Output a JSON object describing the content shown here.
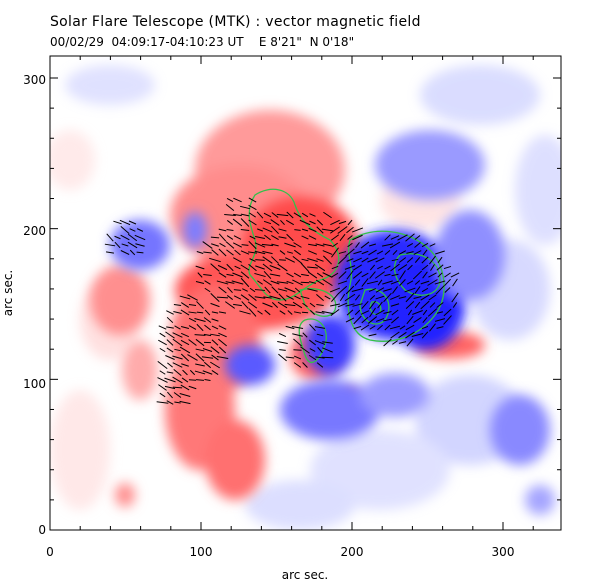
{
  "header": {
    "title": "Solar Flare Telescope (MTK) : vector magnetic field",
    "subtitle": "00/02/29  04:09:17-04:10:23 UT    E 8'21\"  N 0'18\""
  },
  "axes": {
    "xlabel": "arc sec.",
    "ylabel": "arc sec.",
    "xlim": [
      0,
      340
    ],
    "ylim": [
      0,
      325
    ],
    "x_ticks": [
      "0",
      "100",
      "200",
      "300"
    ],
    "y_ticks": [
      "0",
      "100",
      "200",
      "300"
    ]
  },
  "colors": {
    "positive": "#ff3c3c",
    "negative": "#3232ff",
    "contour": "#34c04a",
    "arrows": "#000000"
  }
}
